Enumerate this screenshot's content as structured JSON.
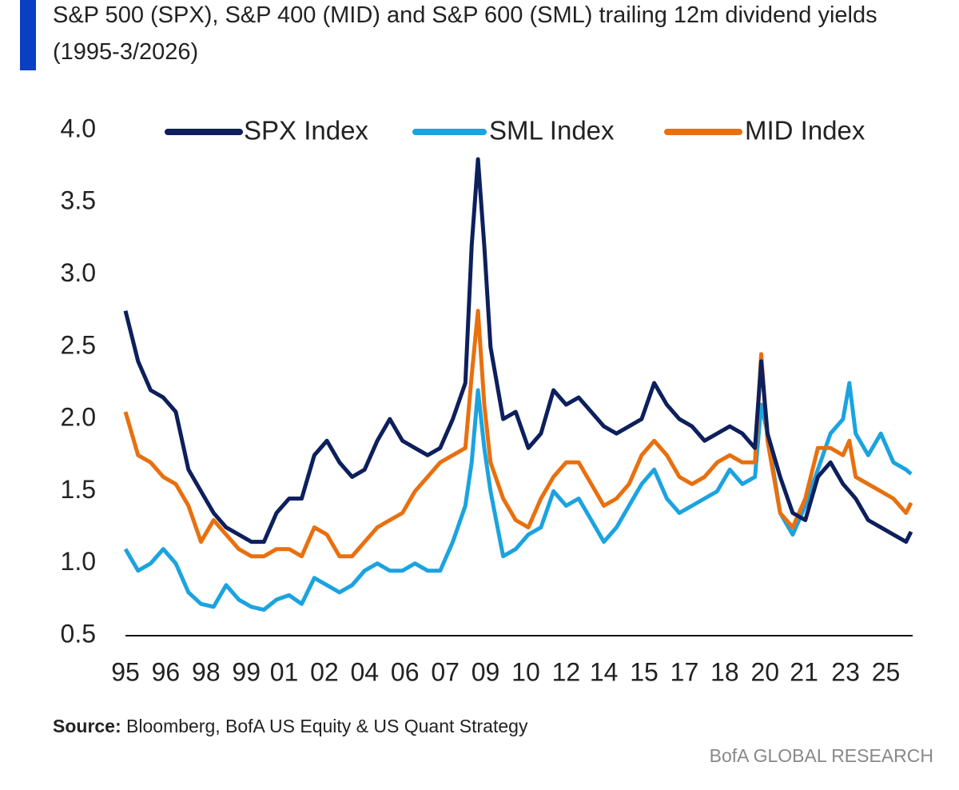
{
  "chart_data": {
    "type": "line",
    "title": "S&P 500 (SPX), S&P 400 (MID) and S&P 600 (SML) trailing 12m dividend yields (1995-3/2026)",
    "source_label": "Source:",
    "source": "Bloomberg, BofA US Equity & US Quant Strategy",
    "branding": "BofA GLOBAL RESEARCH",
    "legend": "top",
    "grid": false,
    "xlim": [
      1995,
      2026.2
    ],
    "xticks": [
      {
        "value": 1995,
        "label": "95"
      },
      {
        "value": 1996.6,
        "label": "96"
      },
      {
        "value": 1998.2,
        "label": "98"
      },
      {
        "value": 1999.8,
        "label": "99"
      },
      {
        "value": 2001.3,
        "label": "01"
      },
      {
        "value": 2002.9,
        "label": "02"
      },
      {
        "value": 2004.5,
        "label": "04"
      },
      {
        "value": 2006.1,
        "label": "06"
      },
      {
        "value": 2007.7,
        "label": "07"
      },
      {
        "value": 2009.3,
        "label": "09"
      },
      {
        "value": 2010.9,
        "label": "10"
      },
      {
        "value": 2012.5,
        "label": "12"
      },
      {
        "value": 2014.0,
        "label": "14"
      },
      {
        "value": 2015.6,
        "label": "15"
      },
      {
        "value": 2017.2,
        "label": "17"
      },
      {
        "value": 2018.8,
        "label": "18"
      },
      {
        "value": 2020.4,
        "label": "20"
      },
      {
        "value": 2021.95,
        "label": "21"
      },
      {
        "value": 2023.6,
        "label": "23"
      },
      {
        "value": 2025.2,
        "label": "25"
      }
    ],
    "ylim": [
      0.5,
      4.0
    ],
    "yticks": [
      0.5,
      {
        "value": 1,
        "label": "1.0"
      },
      1.5,
      {
        "value": 2,
        "label": "2.0"
      },
      2.5,
      {
        "value": 3,
        "label": "3.0"
      },
      3.5,
      {
        "value": 4,
        "label": "4.0"
      }
    ],
    "x": [
      1995.0,
      1995.5,
      1996.0,
      1996.5,
      1997.0,
      1997.5,
      1998.0,
      1998.5,
      1999.0,
      1999.5,
      2000.0,
      2000.5,
      2001.0,
      2001.5,
      2002.0,
      2002.5,
      2003.0,
      2003.5,
      2004.0,
      2004.5,
      2005.0,
      2005.5,
      2006.0,
      2006.5,
      2007.0,
      2007.5,
      2008.0,
      2008.5,
      2008.75,
      2009.0,
      2009.25,
      2009.5,
      2010.0,
      2010.5,
      2011.0,
      2011.5,
      2012.0,
      2012.5,
      2013.0,
      2013.5,
      2014.0,
      2014.5,
      2015.0,
      2015.5,
      2016.0,
      2016.5,
      2017.0,
      2017.5,
      2018.0,
      2018.5,
      2019.0,
      2019.5,
      2020.0,
      2020.25,
      2020.5,
      2021.0,
      2021.5,
      2022.0,
      2022.5,
      2023.0,
      2023.5,
      2023.75,
      2024.0,
      2024.5,
      2025.0,
      2025.5,
      2026.0,
      2026.2
    ],
    "series": [
      {
        "name": "SPX Index",
        "color": "#0d1f5c",
        "values": [
          2.75,
          2.4,
          2.2,
          2.15,
          2.05,
          1.65,
          1.5,
          1.35,
          1.25,
          1.2,
          1.15,
          1.15,
          1.35,
          1.45,
          1.45,
          1.75,
          1.85,
          1.7,
          1.6,
          1.65,
          1.85,
          2.0,
          1.85,
          1.8,
          1.75,
          1.8,
          2.0,
          2.25,
          3.2,
          3.8,
          3.2,
          2.5,
          2.0,
          2.05,
          1.8,
          1.9,
          2.2,
          2.1,
          2.15,
          2.05,
          1.95,
          1.9,
          1.95,
          2.0,
          2.25,
          2.1,
          2.0,
          1.95,
          1.85,
          1.9,
          1.95,
          1.9,
          1.8,
          2.4,
          1.9,
          1.6,
          1.35,
          1.3,
          1.6,
          1.7,
          1.55,
          1.5,
          1.45,
          1.3,
          1.25,
          1.2,
          1.15,
          1.22
        ]
      },
      {
        "name": "SML Index",
        "color": "#1ba3e0",
        "values": [
          1.1,
          0.95,
          1.0,
          1.1,
          1.0,
          0.8,
          0.72,
          0.7,
          0.85,
          0.75,
          0.7,
          0.68,
          0.75,
          0.78,
          0.72,
          0.9,
          0.85,
          0.8,
          0.85,
          0.95,
          1.0,
          0.95,
          0.95,
          1.0,
          0.95,
          0.95,
          1.15,
          1.4,
          1.7,
          2.2,
          1.8,
          1.5,
          1.05,
          1.1,
          1.2,
          1.25,
          1.5,
          1.4,
          1.45,
          1.3,
          1.15,
          1.25,
          1.4,
          1.55,
          1.65,
          1.45,
          1.35,
          1.4,
          1.45,
          1.5,
          1.65,
          1.55,
          1.6,
          2.1,
          1.9,
          1.35,
          1.2,
          1.4,
          1.65,
          1.9,
          2.0,
          2.25,
          1.9,
          1.75,
          1.9,
          1.7,
          1.65,
          1.62
        ]
      },
      {
        "name": "MID Index",
        "color": "#e8700f",
        "values": [
          2.05,
          1.75,
          1.7,
          1.6,
          1.55,
          1.4,
          1.15,
          1.3,
          1.2,
          1.1,
          1.05,
          1.05,
          1.1,
          1.1,
          1.05,
          1.25,
          1.2,
          1.05,
          1.05,
          1.15,
          1.25,
          1.3,
          1.35,
          1.5,
          1.6,
          1.7,
          1.75,
          1.8,
          2.3,
          2.75,
          2.1,
          1.7,
          1.45,
          1.3,
          1.25,
          1.45,
          1.6,
          1.7,
          1.7,
          1.55,
          1.4,
          1.45,
          1.55,
          1.75,
          1.85,
          1.75,
          1.6,
          1.55,
          1.6,
          1.7,
          1.75,
          1.7,
          1.7,
          2.45,
          1.85,
          1.35,
          1.25,
          1.45,
          1.8,
          1.8,
          1.75,
          1.85,
          1.6,
          1.55,
          1.5,
          1.45,
          1.35,
          1.42
        ]
      }
    ]
  }
}
